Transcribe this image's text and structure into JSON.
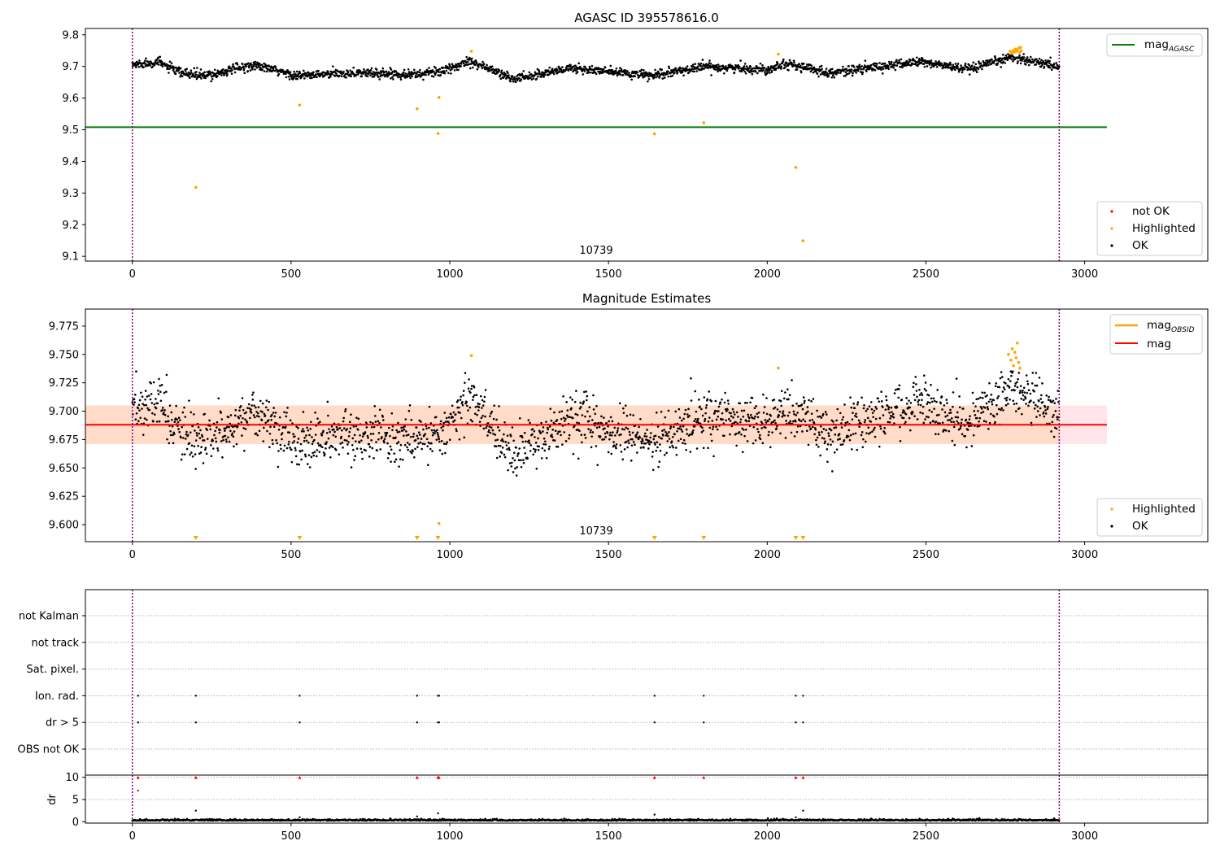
{
  "chart_data": [
    {
      "type": "scatter",
      "title": "AGASC ID 395578616.0",
      "xlim": [
        -148,
        3388
      ],
      "ylim": [
        9.085,
        9.82
      ],
      "xticks": [
        0,
        500,
        1000,
        1500,
        2000,
        2500,
        3000
      ],
      "yticks": [
        9.1,
        9.2,
        9.3,
        9.4,
        9.5,
        9.6,
        9.7,
        9.8
      ],
      "obsid_label": "10739",
      "obs_start": 0,
      "obs_end": 2920,
      "mag_agasc": 9.508,
      "mag_agasc_range": [
        -148,
        3070
      ],
      "ok_trend": [
        [
          0,
          9.705
        ],
        [
          80,
          9.715
        ],
        [
          150,
          9.68
        ],
        [
          230,
          9.67
        ],
        [
          380,
          9.705
        ],
        [
          520,
          9.67
        ],
        [
          700,
          9.68
        ],
        [
          900,
          9.675
        ],
        [
          1000,
          9.69
        ],
        [
          1060,
          9.72
        ],
        [
          1200,
          9.66
        ],
        [
          1380,
          9.695
        ],
        [
          1640,
          9.67
        ],
        [
          1800,
          9.7
        ],
        [
          2000,
          9.69
        ],
        [
          2050,
          9.71
        ],
        [
          2200,
          9.68
        ],
        [
          2480,
          9.715
        ],
        [
          2640,
          9.69
        ],
        [
          2770,
          9.73
        ],
        [
          2920,
          9.7
        ]
      ],
      "ok_noise": 0.012,
      "highlighted": [
        [
          200,
          9.318
        ],
        [
          527,
          9.578
        ],
        [
          897,
          9.566
        ],
        [
          963,
          9.488
        ],
        [
          966,
          9.602
        ],
        [
          1068,
          9.748
        ],
        [
          1645,
          9.487
        ],
        [
          1800,
          9.522
        ],
        [
          2035,
          9.739
        ],
        [
          2090,
          9.381
        ],
        [
          2113,
          9.149
        ],
        [
          2765,
          9.748
        ],
        [
          2770,
          9.742
        ],
        [
          2775,
          9.75
        ],
        [
          2778,
          9.745
        ],
        [
          2782,
          9.755
        ],
        [
          2785,
          9.748
        ],
        [
          2788,
          9.752
        ],
        [
          2792,
          9.758
        ],
        [
          2795,
          9.744
        ],
        [
          2798,
          9.76
        ],
        [
          2800,
          9.75
        ]
      ],
      "not_ok": [],
      "legend_upper": [
        {
          "label": "mag",
          "sub": "AGASC",
          "color": "#008000"
        }
      ],
      "legend_lower": [
        {
          "label": "not OK",
          "color": "#ff0000"
        },
        {
          "label": "Highlighted",
          "color": "#ffa500"
        },
        {
          "label": "OK",
          "color": "#000000"
        }
      ]
    },
    {
      "type": "scatter",
      "title": "Magnitude Estimates",
      "xlim": [
        -148,
        3388
      ],
      "ylim": [
        9.585,
        9.79
      ],
      "xticks": [
        0,
        500,
        1000,
        1500,
        2000,
        2500,
        3000
      ],
      "yticks": [
        9.6,
        9.625,
        9.65,
        9.675,
        9.7,
        9.725,
        9.75,
        9.775
      ],
      "obsid_label": "10739",
      "mag_obsid": 9.688,
      "mag": 9.688,
      "mag_band": [
        9.671,
        9.705
      ],
      "mag_range": [
        -148,
        3070
      ],
      "band_colors": {
        "outer": "#ffe4ea",
        "inner": "#ffd9c4",
        "line": "#ff0000"
      },
      "highlighted": [
        [
          1068,
          9.749
        ],
        [
          2035,
          9.738
        ],
        [
          966,
          9.601
        ],
        [
          2760,
          9.75
        ],
        [
          2768,
          9.745
        ],
        [
          2772,
          9.755
        ],
        [
          2776,
          9.74
        ],
        [
          2780,
          9.752
        ],
        [
          2784,
          9.747
        ],
        [
          2788,
          9.76
        ],
        [
          2792,
          9.743
        ],
        [
          2796,
          9.738
        ]
      ],
      "below_range_markers": [
        200,
        527,
        897,
        963,
        1645,
        1800,
        2090,
        2113
      ],
      "legend_upper": [
        {
          "label": "mag",
          "sub": "OBSID",
          "color": "#ffa500"
        },
        {
          "label": "mag",
          "sub": "",
          "color": "#ff0000"
        }
      ],
      "legend_lower": [
        {
          "label": "Highlighted",
          "color": "#ffa500"
        },
        {
          "label": "OK",
          "color": "#000000"
        }
      ]
    },
    {
      "type": "scatter",
      "categories": [
        "OBS not OK",
        "dr > 5",
        "Ion. rad.",
        "Sat. pixel.",
        "not track",
        "not Kalman"
      ],
      "flag_times": [
        18,
        200,
        527,
        897,
        963,
        966,
        1645,
        1800,
        2090,
        2113
      ],
      "xlim": [
        -148,
        3388
      ]
    },
    {
      "type": "scatter",
      "ylabel": "dr",
      "xlim": [
        -148,
        3388
      ],
      "ylim": [
        -0.3,
        10.5
      ],
      "yticks": [
        0,
        5,
        10
      ],
      "xticks": [
        0,
        500,
        1000,
        1500,
        2000,
        2500,
        3000
      ],
      "capped_value": 10,
      "capped_times": [
        18,
        200,
        527,
        897,
        963,
        966,
        1645,
        1800,
        2090,
        2113
      ],
      "outliers": [
        [
          18,
          7.0
        ],
        [
          200,
          2.5
        ],
        [
          527,
          1.0
        ],
        [
          897,
          1.2
        ],
        [
          963,
          1.9
        ],
        [
          1645,
          1.6
        ],
        [
          2090,
          1.0
        ],
        [
          2113,
          2.5
        ]
      ]
    }
  ]
}
